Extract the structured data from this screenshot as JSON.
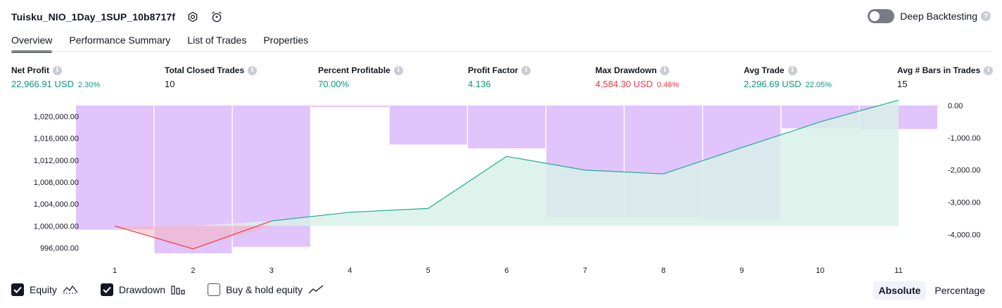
{
  "header": {
    "strategy_title": "Tuisku_NIO_1Day_1SUP_10b8717f",
    "deep_backtesting_label": "Deep Backtesting",
    "deep_backtesting_enabled": false
  },
  "tabs": [
    {
      "label": "Overview",
      "active": true
    },
    {
      "label": "Performance Summary",
      "active": false
    },
    {
      "label": "List of Trades",
      "active": false
    },
    {
      "label": "Properties",
      "active": false
    }
  ],
  "metrics": {
    "net_profit": {
      "label": "Net Profit",
      "value": "22,966.91 USD",
      "pct": "2.30%"
    },
    "total_closed_trades": {
      "label": "Total Closed Trades",
      "value": "10"
    },
    "percent_profitable": {
      "label": "Percent Profitable",
      "value": "70.00%"
    },
    "profit_factor": {
      "label": "Profit Factor",
      "value": "4.136"
    },
    "max_drawdown": {
      "label": "Max Drawdown",
      "value": "4,584.30 USD",
      "pct": "0.46%"
    },
    "avg_trade": {
      "label": "Avg Trade",
      "value": "2,296.69 USD",
      "pct": "22.05%"
    },
    "avg_bars": {
      "label": "Avg # Bars in Trades",
      "value": "15"
    }
  },
  "colors": {
    "positive": "#089981",
    "negative": "#f23645",
    "drawdown_bar": "#e1c4fc",
    "drawdown_bar_overlap": "#b6b4ec",
    "equity_fill": "#d8f1e9",
    "equity_line": "#22ab94"
  },
  "chart_data": {
    "type": "line",
    "x": [
      1,
      2,
      3,
      4,
      5,
      6,
      7,
      8,
      9,
      10,
      11
    ],
    "xlabel": "",
    "series": [
      {
        "name": "Equity",
        "axis": "left",
        "values": [
          1000000,
          995800,
          1000900,
          1002500,
          1003200,
          1012700,
          1010200,
          1009500,
          1014300,
          1019000,
          1022967
        ]
      },
      {
        "name": "Drawdown",
        "axis": "right",
        "type": "bar",
        "values": [
          -3850,
          -4584,
          -4380,
          -50,
          -1210,
          -1330,
          -3460,
          -3460,
          -3560,
          -710,
          -730
        ]
      }
    ],
    "left_axis": {
      "ylim": [
        994000,
        1022000
      ],
      "ticks": [
        996000,
        1000000,
        1004000,
        1008000,
        1012000,
        1016000,
        1020000
      ],
      "tick_labels": [
        "996,000.00",
        "1,000,000.00",
        "1,004,000.00",
        "1,008,000.00",
        "1,012,000.00",
        "1,016,000.00",
        "1,020,000.00"
      ]
    },
    "right_axis": {
      "ylim": [
        -4600,
        0
      ],
      "ticks": [
        0,
        -1000,
        -2000,
        -3000,
        -4000
      ],
      "tick_labels": [
        "0.00",
        "-1,000.00",
        "-2,000.00",
        "-3,000.00",
        "-4,000.00"
      ]
    },
    "x_tick_labels": [
      "1",
      "2",
      "3",
      "4",
      "5",
      "6",
      "7",
      "8",
      "9",
      "10",
      "11"
    ]
  },
  "legend": {
    "equity": {
      "label": "Equity",
      "checked": true
    },
    "drawdown": {
      "label": "Drawdown",
      "checked": true
    },
    "buy_hold": {
      "label": "Buy & hold equity",
      "checked": false
    }
  },
  "mode": {
    "absolute_label": "Absolute",
    "percentage_label": "Percentage",
    "selected": "Absolute"
  }
}
